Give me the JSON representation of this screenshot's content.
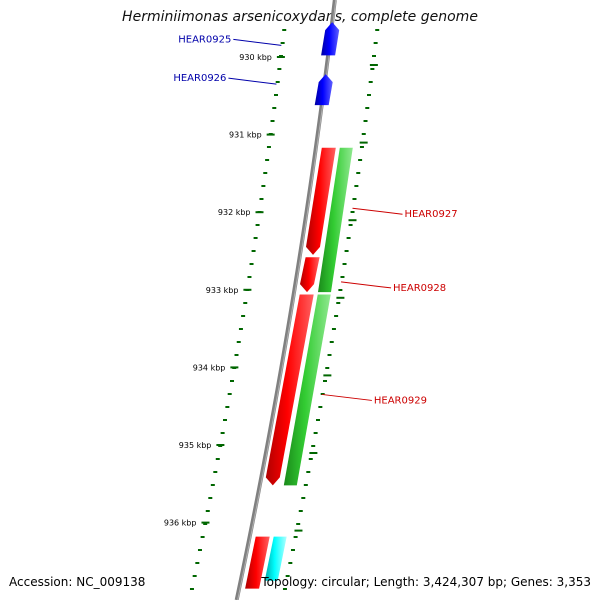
{
  "title": "Herminiimonas arsenicoxydans, complete genome",
  "accession": "Accession: NC_009138",
  "topology": "Topology: circular; Length: 3,424,307 bp; Genes: 3,353",
  "colors": {
    "backbone": "#808080",
    "forward_gene": "#ff0000",
    "reverse_gene": "#0000ff",
    "forward_cds": "#33cc33",
    "other_cds": "#00ffff",
    "tick": "#006600",
    "label_blue": "#0000aa",
    "label_red": "#cc0000"
  },
  "ticks": [
    {
      "kbp": 930,
      "label": "930 kbp"
    },
    {
      "kbp": 931,
      "label": "931 kbp"
    },
    {
      "kbp": 932,
      "label": "932 kbp"
    },
    {
      "kbp": 933,
      "label": "933 kbp"
    },
    {
      "kbp": 934,
      "label": "934 kbp"
    },
    {
      "kbp": 935,
      "label": "935 kbp"
    },
    {
      "kbp": 936,
      "label": "936 kbp"
    }
  ],
  "genes": [
    {
      "id": "HEAR0925",
      "strand": "reverse",
      "start_kbp": 929.55,
      "end_kbp": 929.98,
      "color": "#0000ff"
    },
    {
      "id": "HEAR0926",
      "strand": "reverse",
      "start_kbp": 930.22,
      "end_kbp": 930.62,
      "color": "#0000ff"
    },
    {
      "id": "HEAR0927",
      "strand": "forward",
      "start_kbp": 931.17,
      "end_kbp": 932.55,
      "color": "#ff0000"
    },
    {
      "id": "HEAR0928",
      "strand": "forward",
      "start_kbp": 932.58,
      "end_kbp": 933.03,
      "color": "#ff0000"
    },
    {
      "id": "HEAR0929",
      "strand": "forward",
      "start_kbp": 933.06,
      "end_kbp": 935.52,
      "color": "#ff0000"
    }
  ],
  "cds_track": [
    {
      "start_kbp": 931.17,
      "end_kbp": 933.03,
      "color": "#33cc33"
    },
    {
      "start_kbp": 933.06,
      "end_kbp": 935.52,
      "color": "#33cc33"
    },
    {
      "start_kbp": 936.18,
      "end_kbp": 936.75,
      "color": "#00ffff"
    }
  ],
  "gene_labels": [
    {
      "text": "HEAR0925",
      "color": "#0000aa",
      "side": "left",
      "kbp": 929.85
    },
    {
      "text": "HEAR0926",
      "color": "#0000aa",
      "side": "left",
      "kbp": 930.35
    },
    {
      "text": "HEAR0927",
      "color": "#cc0000",
      "side": "right",
      "kbp": 932.0
    },
    {
      "text": "HEAR0928",
      "color": "#cc0000",
      "side": "right",
      "kbp": 932.95
    },
    {
      "text": "HEAR0929",
      "color": "#cc0000",
      "side": "right",
      "kbp": 934.4
    }
  ]
}
